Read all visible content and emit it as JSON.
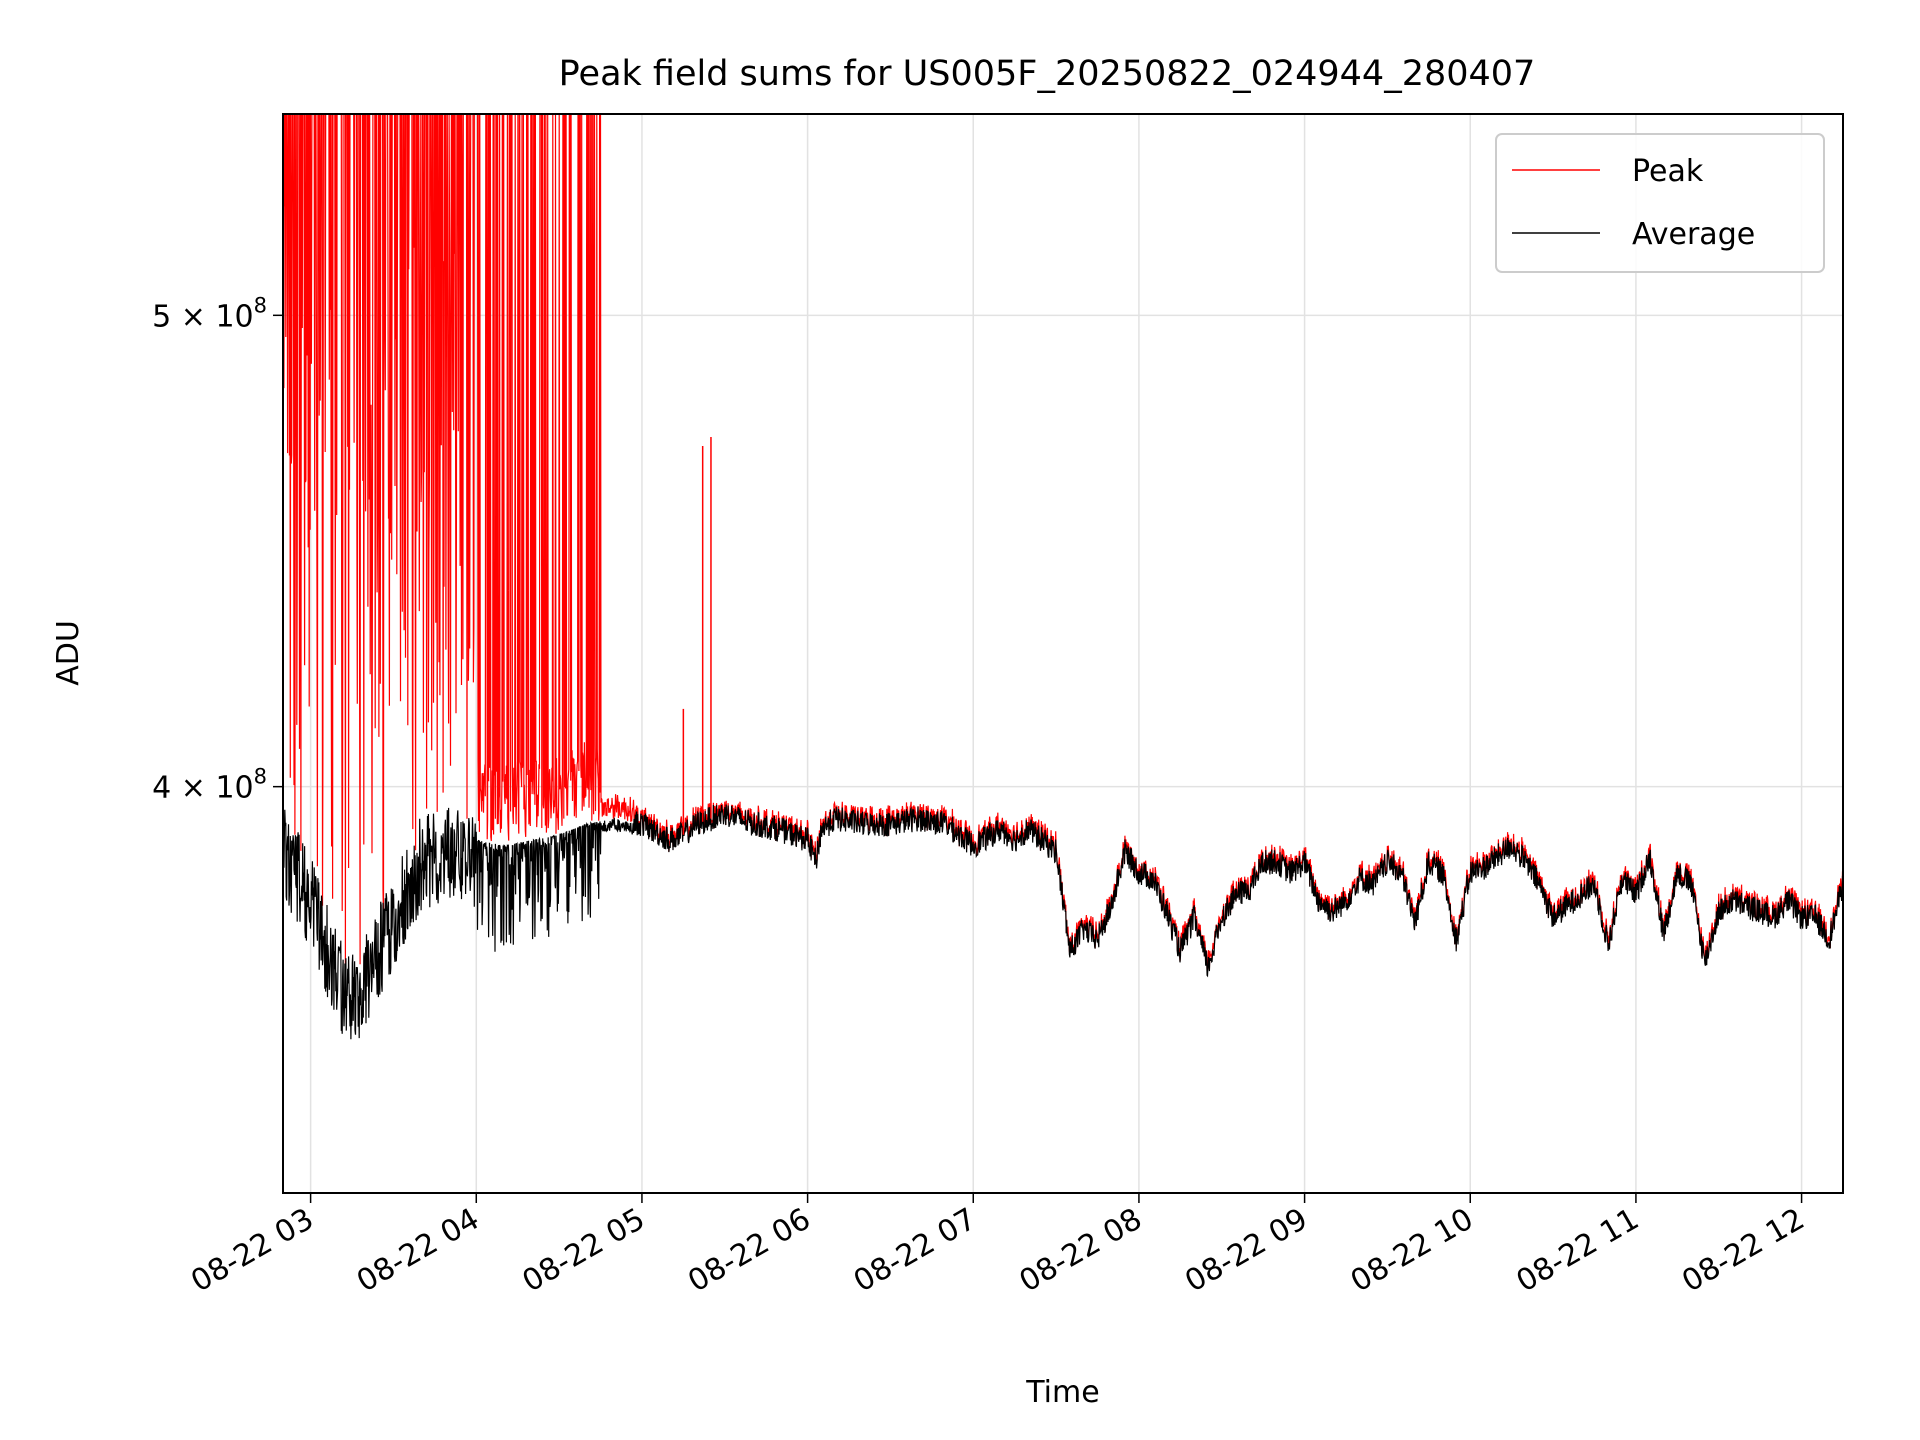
{
  "chart_data": {
    "type": "line",
    "title": "Peak field sums for US005F_20250822_024944_280407",
    "xlabel": "Time",
    "ylabel": "ADU",
    "y_scale": "log",
    "ylim": [
      330000000,
      550000000
    ],
    "xlim": [
      "08-22 02:50",
      "08-22 12:15"
    ],
    "grid": true,
    "legend_position": "upper right",
    "x_ticks": [
      "08-22 03",
      "08-22 04",
      "08-22 05",
      "08-22 06",
      "08-22 07",
      "08-22 08",
      "08-22 09",
      "08-22 10",
      "08-22 11",
      "08-22 12"
    ],
    "y_ticks": [
      {
        "value": 400000000,
        "mantissa": "4",
        "exponent": "8"
      },
      {
        "value": 500000000,
        "mantissa": "5",
        "exponent": "8"
      }
    ],
    "series": [
      {
        "name": "Peak",
        "color": "#ff0000"
      },
      {
        "name": "Average",
        "color": "#000000"
      }
    ],
    "average_profile": {
      "x": [
        "02:50",
        "03:00",
        "03:05",
        "03:10",
        "03:15",
        "03:20",
        "03:25",
        "03:30",
        "03:35",
        "03:40",
        "03:45",
        "03:50",
        "03:55",
        "04:00",
        "04:10",
        "04:20",
        "04:30",
        "04:40",
        "04:50",
        "05:00",
        "05:10",
        "05:15",
        "05:20",
        "05:30",
        "05:40",
        "05:50",
        "06:00",
        "06:03",
        "06:05",
        "06:10",
        "06:20",
        "06:30",
        "06:40",
        "06:50",
        "07:00",
        "07:10",
        "07:15",
        "07:20",
        "07:30",
        "07:35",
        "07:40",
        "07:45",
        "07:50",
        "07:55",
        "08:00",
        "08:05",
        "08:10",
        "08:15",
        "08:20",
        "08:25",
        "08:30",
        "08:35",
        "08:40",
        "08:45",
        "08:50",
        "08:55",
        "09:00",
        "09:05",
        "09:10",
        "09:15",
        "09:20",
        "09:25",
        "09:30",
        "09:35",
        "09:40",
        "09:45",
        "09:50",
        "09:55",
        "10:00",
        "10:05",
        "10:10",
        "10:15",
        "10:20",
        "10:25",
        "10:30",
        "10:35",
        "10:40",
        "10:45",
        "10:50",
        "10:55",
        "11:00",
        "11:05",
        "11:10",
        "11:15",
        "11:20",
        "11:25",
        "11:30",
        "11:35",
        "11:40",
        "11:45",
        "11:50",
        "11:55",
        "12:00",
        "12:05",
        "12:10",
        "12:15"
      ],
      "y": [
        392000000,
        383000000,
        375000000,
        369000000,
        365000000,
        369000000,
        374000000,
        378000000,
        385000000,
        390000000,
        391000000,
        392000000,
        391000000,
        390000000,
        389000000,
        390000000,
        391000000,
        393000000,
        394000000,
        393000000,
        390000000,
        391000000,
        393000000,
        395000000,
        393000000,
        392000000,
        390000000,
        386000000,
        392000000,
        394000000,
        393000000,
        393000000,
        394000000,
        393000000,
        389000000,
        392000000,
        390000000,
        392000000,
        388000000,
        370000000,
        374000000,
        372000000,
        378000000,
        388000000,
        384000000,
        383000000,
        377000000,
        370000000,
        376000000,
        367000000,
        376000000,
        380000000,
        381000000,
        386000000,
        386000000,
        384000000,
        386000000,
        379000000,
        377000000,
        379000000,
        383000000,
        382000000,
        386000000,
        384000000,
        375000000,
        386000000,
        384000000,
        372000000,
        384000000,
        385000000,
        387000000,
        389000000,
        386000000,
        382000000,
        376000000,
        378000000,
        380000000,
        382000000,
        371000000,
        383000000,
        380000000,
        387000000,
        373000000,
        384000000,
        382000000,
        368000000,
        377000000,
        379000000,
        378000000,
        377000000,
        376000000,
        379000000,
        376000000,
        376000000,
        372000000,
        382000000
      ]
    },
    "peak_spikes": [
      {
        "x": "05:15",
        "y": 415000000
      },
      {
        "x": "05:22",
        "y": 470000000
      },
      {
        "x": "05:25",
        "y": 472000000
      }
    ]
  }
}
